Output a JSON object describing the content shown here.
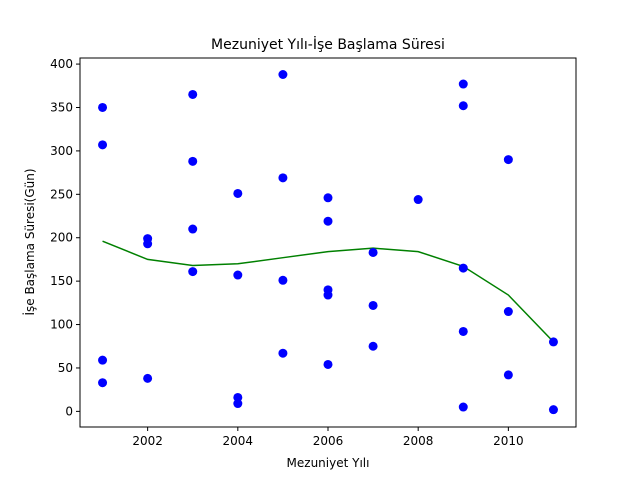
{
  "chart_data": {
    "type": "scatter",
    "title": "Mezuniyet Yılı-İşe Başlama Süresi",
    "xlabel": "Mezuniyet Yılı",
    "ylabel": "İşe Başlama Süresi(Gün)",
    "xlim": [
      2000.5,
      2011.5
    ],
    "ylim": [
      -18,
      407
    ],
    "xticks": [
      2002,
      2004,
      2006,
      2008,
      2010
    ],
    "yticks": [
      0,
      50,
      100,
      150,
      200,
      250,
      300,
      350,
      400
    ],
    "grid": false,
    "legend": "none",
    "colors": {
      "points": "#0000ff",
      "trend": "#008000",
      "axes": "#000000"
    },
    "series": [
      {
        "type": "scatter",
        "points": [
          [
            2001,
            350
          ],
          [
            2001,
            307
          ],
          [
            2001,
            59
          ],
          [
            2001,
            33
          ],
          [
            2002,
            199
          ],
          [
            2002,
            193
          ],
          [
            2002,
            38
          ],
          [
            2003,
            365
          ],
          [
            2003,
            288
          ],
          [
            2003,
            210
          ],
          [
            2003,
            161
          ],
          [
            2004,
            251
          ],
          [
            2004,
            157
          ],
          [
            2004,
            16
          ],
          [
            2004,
            9
          ],
          [
            2005,
            388
          ],
          [
            2005,
            269
          ],
          [
            2005,
            151
          ],
          [
            2005,
            67
          ],
          [
            2006,
            246
          ],
          [
            2006,
            219
          ],
          [
            2006,
            140
          ],
          [
            2006,
            134
          ],
          [
            2006,
            54
          ],
          [
            2007,
            183
          ],
          [
            2007,
            122
          ],
          [
            2007,
            75
          ],
          [
            2008,
            244
          ],
          [
            2009,
            377
          ],
          [
            2009,
            352
          ],
          [
            2009,
            165
          ],
          [
            2009,
            92
          ],
          [
            2009,
            5
          ],
          [
            2010,
            290
          ],
          [
            2010,
            115
          ],
          [
            2010,
            42
          ],
          [
            2011,
            80
          ],
          [
            2011,
            2
          ]
        ]
      },
      {
        "type": "line",
        "points": [
          [
            2001,
            196
          ],
          [
            2002,
            175
          ],
          [
            2003,
            168
          ],
          [
            2004,
            170
          ],
          [
            2005,
            177
          ],
          [
            2006,
            184
          ],
          [
            2007,
            188
          ],
          [
            2008,
            184
          ],
          [
            2009,
            167
          ],
          [
            2010,
            134
          ],
          [
            2011,
            80
          ]
        ]
      }
    ]
  }
}
